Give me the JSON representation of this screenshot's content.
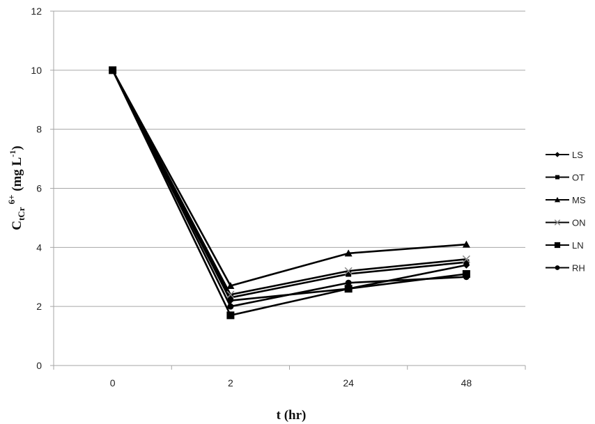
{
  "chart_data": {
    "type": "line",
    "title": "",
    "xlabel": "t (hr)",
    "ylabel": "CtCr 6+ (mg L-1)",
    "ylabel_parts": {
      "main": "C",
      "sub": "tCr",
      "sup": "6+",
      "unit": " (mg L",
      "unit_sup": "-1",
      "unit_end": ")"
    },
    "categories": [
      "0",
      "2",
      "24",
      "48"
    ],
    "ylim": [
      0,
      12
    ],
    "yticks": [
      0,
      2,
      4,
      6,
      8,
      10,
      12
    ],
    "grid": true,
    "legend_position": "right",
    "series": [
      {
        "name": "LS",
        "marker": "diamond",
        "color": "#000000",
        "values": [
          10,
          2.2,
          2.6,
          3.4
        ]
      },
      {
        "name": "OT",
        "marker": "square-small",
        "color": "#000000",
        "values": [
          10,
          2.3,
          3.1,
          3.5
        ]
      },
      {
        "name": "MS",
        "marker": "triangle",
        "color": "#000000",
        "values": [
          10,
          2.7,
          3.8,
          4.1
        ]
      },
      {
        "name": "ON",
        "marker": "x",
        "color": "#000000",
        "marker_color": "#888888",
        "values": [
          10,
          2.4,
          3.2,
          3.6
        ]
      },
      {
        "name": "LN",
        "marker": "square",
        "color": "#000000",
        "values": [
          10,
          1.7,
          2.6,
          3.1
        ]
      },
      {
        "name": "RH",
        "marker": "circle",
        "color": "#000000",
        "values": [
          10,
          2.0,
          2.8,
          3.0
        ]
      }
    ]
  },
  "colors": {
    "gridline": "#a6a6a6",
    "axis": "#a6a6a6",
    "series": "#000000",
    "on_marker": "#888888"
  }
}
